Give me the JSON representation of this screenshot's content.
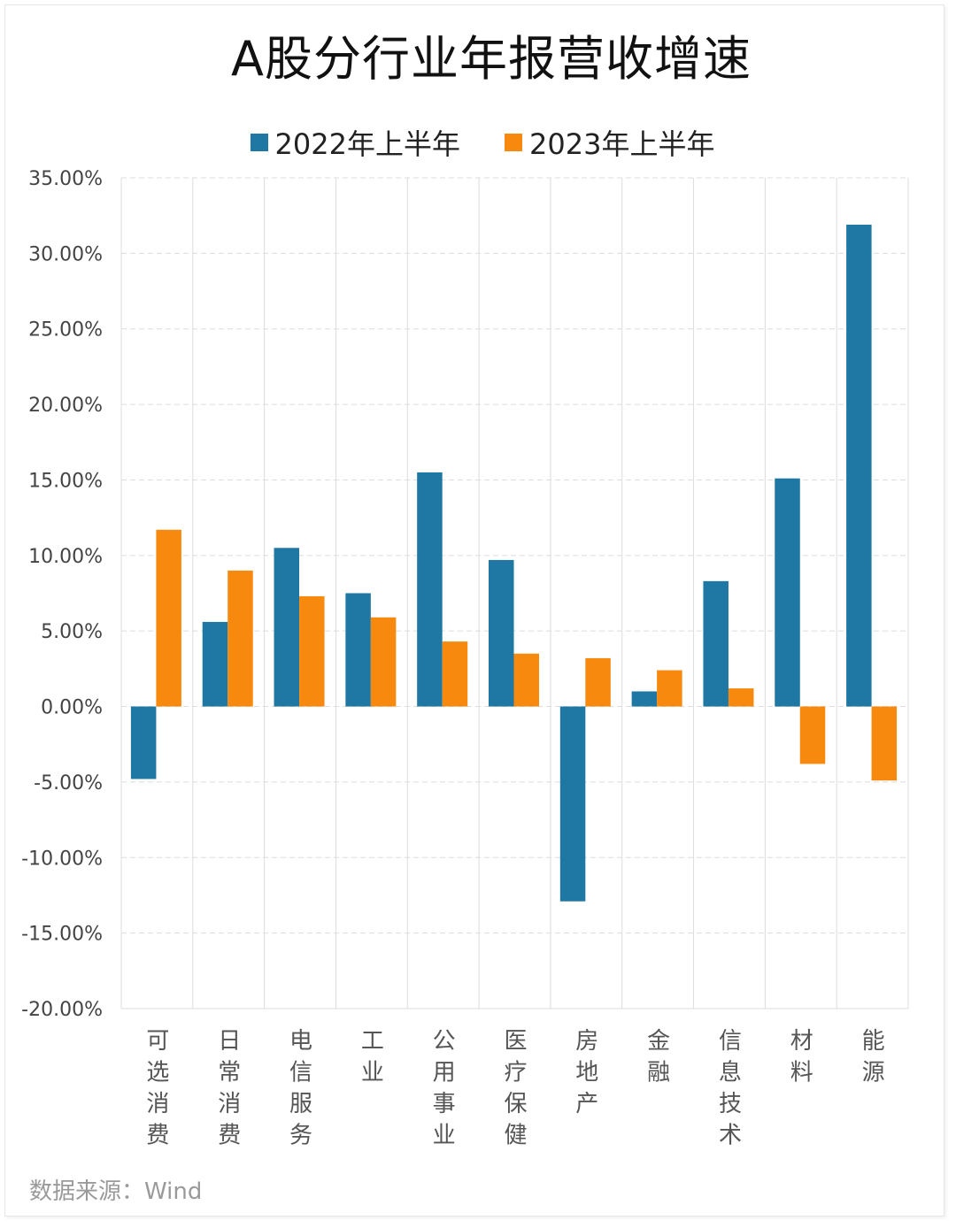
{
  "chart_data": {
    "type": "bar",
    "title": "A股分行业年报营收增速",
    "categories": [
      "可选消费",
      "日常消费",
      "电信服务",
      "工业",
      "公用事业",
      "医疗保健",
      "房地产",
      "金融",
      "信息技术",
      "材料",
      "能源"
    ],
    "series": [
      {
        "name": "2022年上半年",
        "color": "#1f77a4",
        "values": [
          -4.8,
          5.6,
          10.5,
          7.5,
          15.5,
          9.7,
          -12.9,
          1.0,
          8.3,
          15.1,
          31.9
        ]
      },
      {
        "name": "2023年上半年",
        "color": "#f7890f",
        "values": [
          11.7,
          9.0,
          7.3,
          5.9,
          4.3,
          3.5,
          3.2,
          2.4,
          1.2,
          -3.8,
          -4.9
        ]
      }
    ],
    "ylim": [
      -20,
      35
    ],
    "yticks": [
      35,
      30,
      25,
      20,
      15,
      10,
      5,
      0,
      -5,
      -10,
      -15,
      -20
    ],
    "ytick_labels": [
      "35.00%",
      "30.00%",
      "25.00%",
      "20.00%",
      "15.00%",
      "10.00%",
      "5.00%",
      "0.00%",
      "-5.00%",
      "-10.00%",
      "-15.00%",
      "-20.00%"
    ],
    "grid": true,
    "legend_position": "top-center",
    "xlabel": "",
    "ylabel": ""
  },
  "source": "数据来源：Wind"
}
